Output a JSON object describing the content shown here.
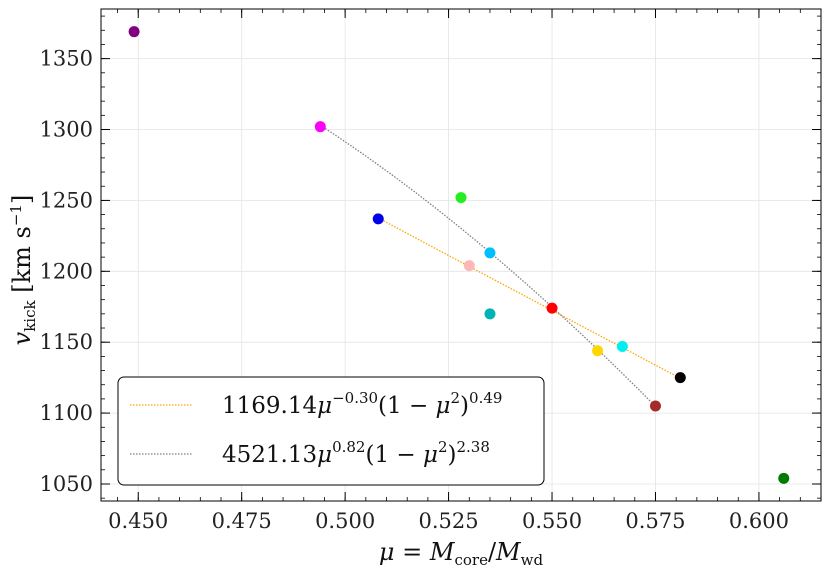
{
  "chart_data": {
    "type": "scatter",
    "xlabel": "μ = M_core/M_wd",
    "ylabel": "v_kick [km s⁻¹]",
    "xlim": [
      0.441,
      0.615
    ],
    "ylim": [
      1038,
      1385
    ],
    "grid": true,
    "x_ticks": [
      0.45,
      0.475,
      0.5,
      0.525,
      0.55,
      0.575,
      0.6
    ],
    "x_tick_labels": [
      "0.450",
      "0.475",
      "0.500",
      "0.525",
      "0.550",
      "0.575",
      "0.600"
    ],
    "y_ticks": [
      1050,
      1100,
      1150,
      1200,
      1250,
      1300,
      1350
    ],
    "y_tick_labels": [
      "1050",
      "1100",
      "1150",
      "1200",
      "1250",
      "1300",
      "1350"
    ],
    "points": [
      {
        "x": 0.449,
        "y": 1369,
        "color": "#800080"
      },
      {
        "x": 0.494,
        "y": 1302,
        "color": "#ff00ff"
      },
      {
        "x": 0.508,
        "y": 1237,
        "color": "#0000ee"
      },
      {
        "x": 0.528,
        "y": 1252,
        "color": "#22ee22"
      },
      {
        "x": 0.53,
        "y": 1204,
        "color": "#ffb6b6"
      },
      {
        "x": 0.535,
        "y": 1213,
        "color": "#00bfff"
      },
      {
        "x": 0.535,
        "y": 1170,
        "color": "#00b4b4"
      },
      {
        "x": 0.55,
        "y": 1174,
        "color": "#ff0000"
      },
      {
        "x": 0.561,
        "y": 1144,
        "color": "#ffd700"
      },
      {
        "x": 0.567,
        "y": 1147,
        "color": "#00eeee"
      },
      {
        "x": 0.575,
        "y": 1105,
        "color": "#a52a2a"
      },
      {
        "x": 0.581,
        "y": 1125,
        "color": "#000000"
      },
      {
        "x": 0.606,
        "y": 1054,
        "color": "#007a00"
      }
    ],
    "fits": [
      {
        "name": "fit-orange",
        "label": "1169.14μ^(−0.30)(1 − μ²)^(0.49)",
        "A": 1169.14,
        "a": -0.3,
        "b": 0.49,
        "x_range": [
          0.508,
          0.581
        ],
        "color": "#ffa500"
      },
      {
        "name": "fit-gray",
        "label": "4521.13μ^(0.82)(1 − μ²)^(2.38)",
        "A": 4521.13,
        "a": 0.82,
        "b": 2.38,
        "x_range": [
          0.494,
          0.575
        ],
        "color": "#808080"
      }
    ],
    "legend_position": "lower-left"
  }
}
